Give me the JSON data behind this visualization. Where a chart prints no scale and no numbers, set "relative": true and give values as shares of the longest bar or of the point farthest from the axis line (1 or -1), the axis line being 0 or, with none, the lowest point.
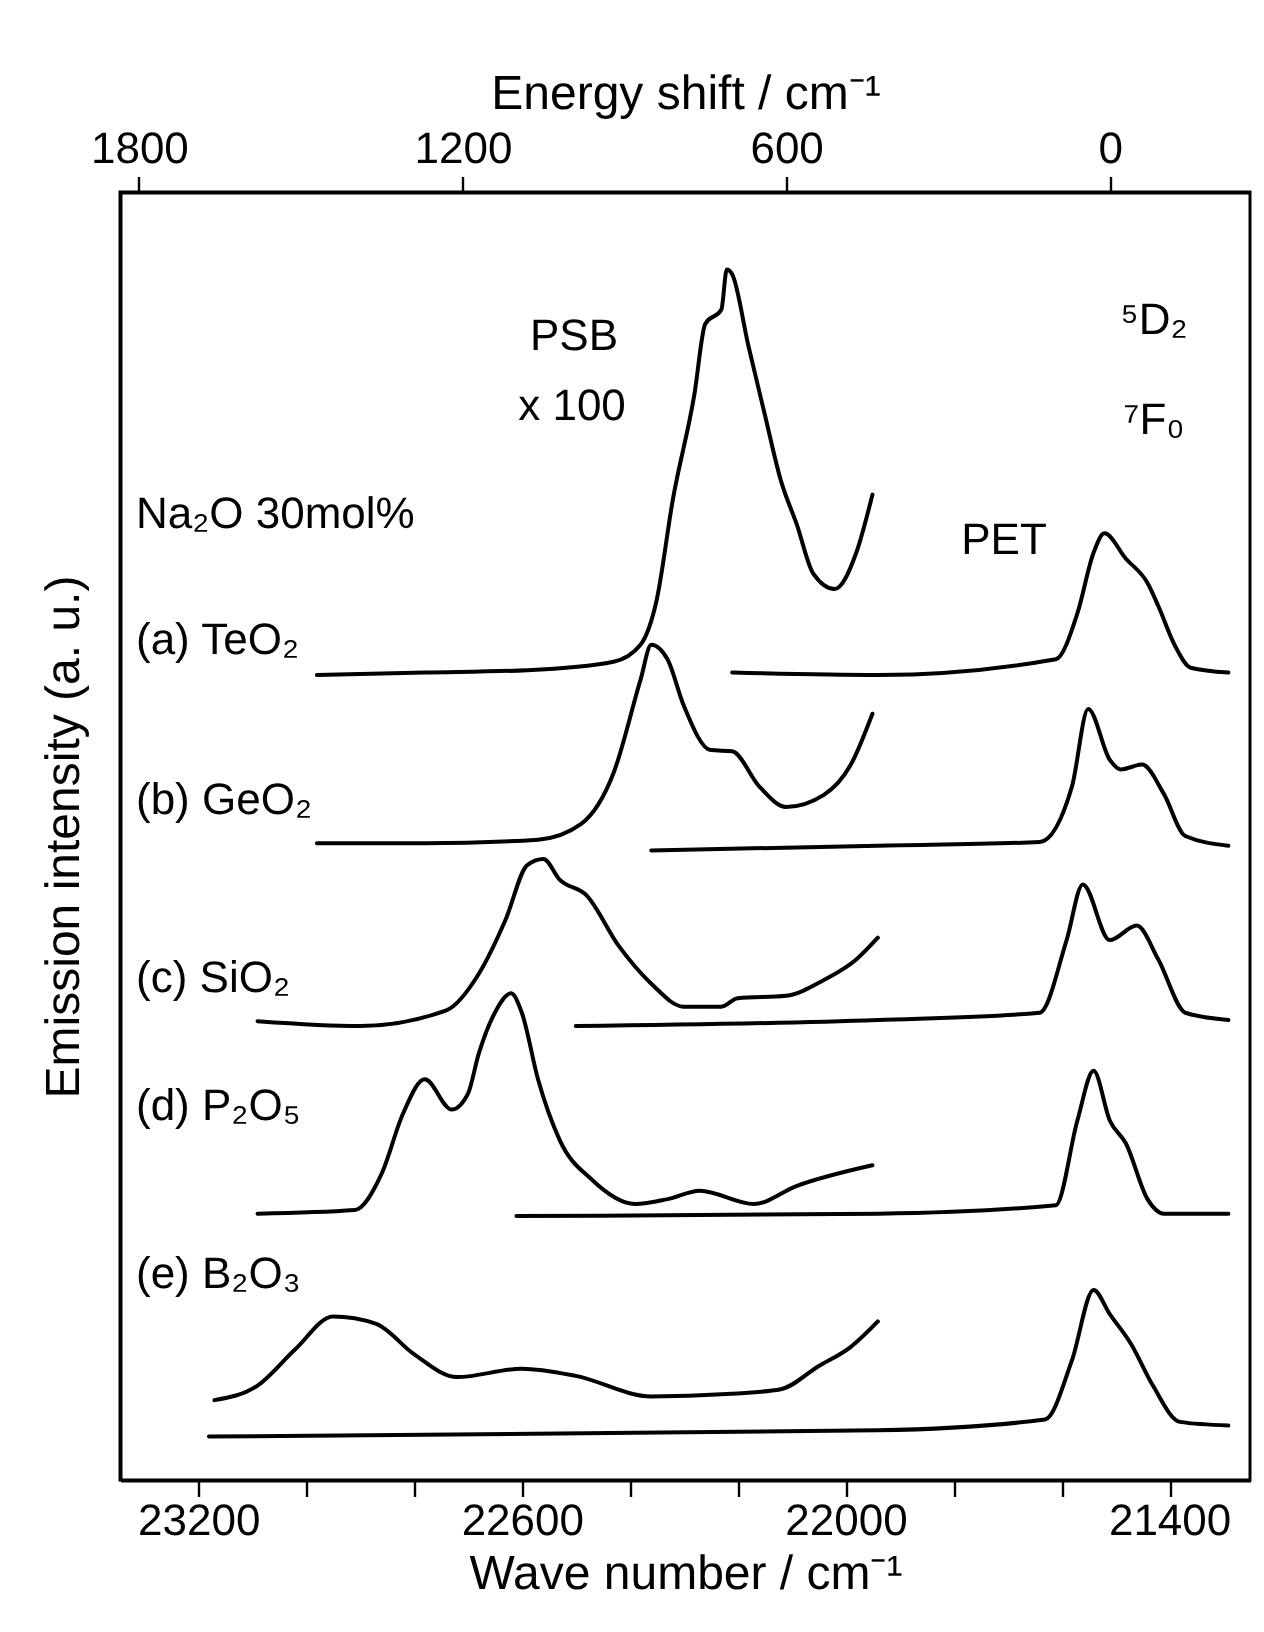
{
  "chart_data": {
    "type": "line",
    "relative": true,
    "xlabel": "Wave number / cm⁻¹",
    "ylabel": "Emission intensity (a. u.)",
    "x2label": "Energy shift / cm⁻¹",
    "xlim": [
      23345,
      21250
    ],
    "xticks": [
      23200,
      {
        "value": 23000,
        "label": null
      },
      {
        "value": 22800,
        "label": null
      },
      22600,
      {
        "value": 22400,
        "label": null
      },
      {
        "value": 22200,
        "label": null
      },
      22000,
      {
        "value": 21800,
        "label": null
      },
      {
        "value": 21600,
        "label": null
      },
      21400
    ],
    "x2lim": [
      1835,
      -260
    ],
    "x2ticks": [
      1800,
      1200,
      600,
      0
    ],
    "grid": false,
    "legend": false,
    "annotations": [
      "PSB",
      "x 100",
      "Na₂O 30mol%",
      "(a) TeO₂",
      "(b) GeO₂",
      "(c) SiO₂",
      "(d) P₂O₅",
      "(e) B₂O₃",
      "PET",
      "⁵D₂",
      "⁷F₀"
    ],
    "series": [
      {
        "color": "#000000",
        "x": [
          22980,
          22780,
          22590,
          22430,
          22380,
          22350,
          22320,
          22280,
          22260,
          22230,
          22220,
          22210,
          22180,
          22150,
          22120,
          22090,
          22060,
          22020,
          21980,
          21950
        ],
        "values": [
          0.665,
          0.667,
          0.669,
          0.676,
          0.69,
          0.727,
          0.81,
          0.897,
          0.955,
          0.967,
          1.0,
          0.996,
          0.937,
          0.881,
          0.826,
          0.789,
          0.749,
          0.736,
          0.766,
          0.814
        ]
      },
      {
        "color": "#000000",
        "x": [
          22210,
          21940,
          21610,
          21570,
          21540,
          21520,
          21480,
          21440,
          21420,
          21390,
          21360,
          21290
        ],
        "values": [
          0.667,
          0.665,
          0.678,
          0.716,
          0.766,
          0.782,
          0.761,
          0.741,
          0.722,
          0.69,
          0.671,
          0.667
        ]
      },
      {
        "color": "#000000",
        "x": [
          22980,
          22780,
          22570,
          22490,
          22430,
          22380,
          22360,
          22330,
          22300,
          22250,
          22210,
          22160,
          22110,
          22040,
          21990,
          21950
        ],
        "values": [
          0.526,
          0.526,
          0.529,
          0.542,
          0.584,
          0.661,
          0.69,
          0.678,
          0.64,
          0.603,
          0.602,
          0.573,
          0.556,
          0.566,
          0.591,
          0.633
        ]
      },
      {
        "color": "#000000",
        "x": [
          22360,
          21940,
          21640,
          21580,
          21550,
          21510,
          21490,
          21450,
          21410,
          21370,
          21290
        ],
        "values": [
          0.52,
          0.524,
          0.527,
          0.573,
          0.637,
          0.595,
          0.587,
          0.591,
          0.567,
          0.532,
          0.524
        ]
      },
      {
        "color": "#000000",
        "x": [
          23090,
          22900,
          22740,
          22680,
          22630,
          22590,
          22560,
          22530,
          22480,
          22420,
          22360,
          22300,
          22230,
          22200,
          22110,
          22040,
          21980,
          21940
        ],
        "values": [
          0.379,
          0.375,
          0.388,
          0.418,
          0.463,
          0.508,
          0.513,
          0.496,
          0.483,
          0.441,
          0.41,
          0.391,
          0.391,
          0.398,
          0.4,
          0.413,
          0.43,
          0.448
        ]
      },
      {
        "color": "#000000",
        "x": [
          22500,
          21940,
          21640,
          21590,
          21560,
          21510,
          21460,
          21420,
          21370,
          21290
        ],
        "values": [
          0.375,
          0.38,
          0.386,
          0.446,
          0.492,
          0.446,
          0.458,
          0.43,
          0.386,
          0.38
        ]
      },
      {
        "color": "#000000",
        "x": [
          23090,
          22910,
          22860,
          22820,
          22780,
          22730,
          22700,
          22680,
          22650,
          22620,
          22600,
          22570,
          22530,
          22470,
          22390,
          22330,
          22270,
          22170,
          22090,
          21950
        ],
        "values": [
          0.22,
          0.223,
          0.253,
          0.303,
          0.331,
          0.306,
          0.319,
          0.352,
          0.386,
          0.402,
          0.386,
          0.331,
          0.281,
          0.248,
          0.228,
          0.232,
          0.239,
          0.228,
          0.243,
          0.26
        ]
      },
      {
        "color": "#000000",
        "x": [
          22610,
          21940,
          21610,
          21570,
          21540,
          21510,
          21480,
          21440,
          21410,
          21290
        ],
        "values": [
          0.218,
          0.22,
          0.227,
          0.297,
          0.338,
          0.297,
          0.278,
          0.232,
          0.22,
          0.22
        ]
      },
      {
        "color": "#000000",
        "x": [
          23170,
          23090,
          23020,
          22950,
          22870,
          22800,
          22720,
          22600,
          22500,
          22360,
          22220,
          22120,
          22050,
          21990,
          21940
        ],
        "values": [
          0.066,
          0.078,
          0.108,
          0.135,
          0.129,
          0.104,
          0.085,
          0.092,
          0.086,
          0.069,
          0.071,
          0.075,
          0.094,
          0.11,
          0.131
        ]
      },
      {
        "color": "#000000",
        "x": [
          23180,
          21940,
          21630,
          21580,
          21540,
          21510,
          21470,
          21430,
          21380,
          21290
        ],
        "values": [
          0.036,
          0.041,
          0.05,
          0.099,
          0.157,
          0.137,
          0.112,
          0.078,
          0.048,
          0.045
        ]
      }
    ]
  }
}
